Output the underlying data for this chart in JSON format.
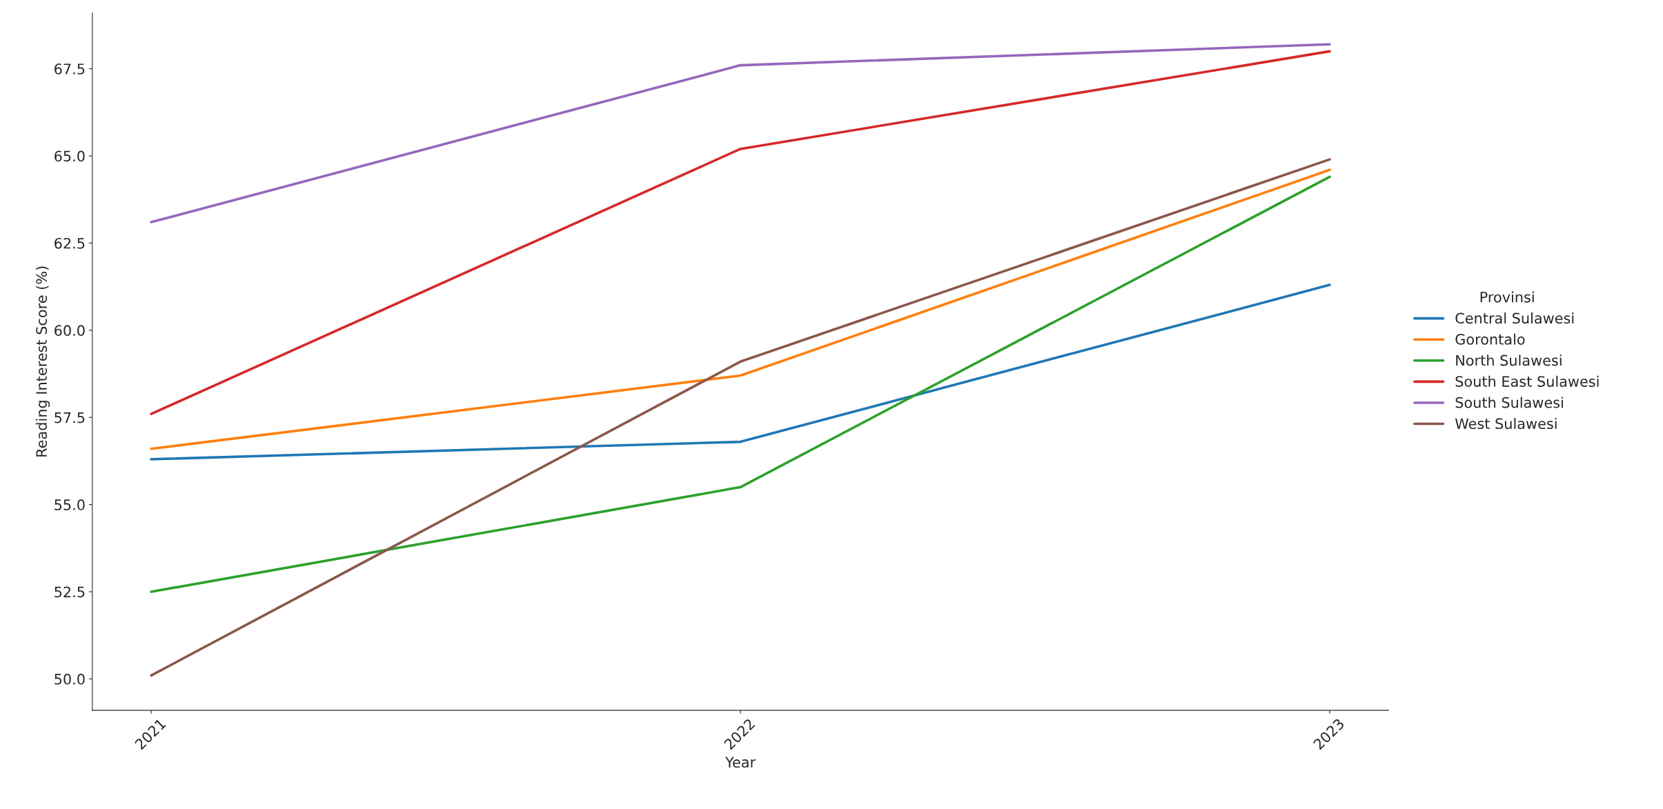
{
  "chart_data": {
    "type": "line",
    "xlabel": "Year",
    "ylabel": "Reading Interest Score (%)",
    "legend_title": "Provinsi",
    "x": [
      2021,
      2022,
      2023
    ],
    "series": [
      {
        "name": "Central Sulawesi",
        "color": "#1f77b4",
        "values": [
          56.3,
          56.8,
          61.3
        ]
      },
      {
        "name": "Gorontalo",
        "color": "#ff7f0e",
        "values": [
          56.6,
          58.7,
          64.6
        ]
      },
      {
        "name": "North Sulawesi",
        "color": "#2ca02c",
        "values": [
          52.5,
          55.5,
          64.4
        ]
      },
      {
        "name": "South East Sulawesi",
        "color": "#d62728",
        "values": [
          57.6,
          65.2,
          68.0
        ]
      },
      {
        "name": "South Sulawesi",
        "color": "#9467bd",
        "values": [
          63.1,
          67.6,
          68.2
        ]
      },
      {
        "name": "West Sulawesi",
        "color": "#8c564b",
        "values": [
          50.1,
          59.1,
          64.9
        ]
      }
    ],
    "xlim": [
      2020.9,
      2023.1
    ],
    "xticks": [
      2021,
      2022,
      2023
    ],
    "ylim": [
      49.1,
      69.1
    ],
    "yticks": [
      {
        "value": 50,
        "label": "50.0"
      },
      {
        "value": 52.5,
        "label": "52.5"
      },
      {
        "value": 55,
        "label": "55.0"
      },
      {
        "value": 57.5,
        "label": "57.5"
      },
      {
        "value": 60,
        "label": "60.0"
      },
      {
        "value": 62.5,
        "label": "62.5"
      },
      {
        "value": 65,
        "label": "65.0"
      },
      {
        "value": 67.5,
        "label": "67.5"
      }
    ],
    "legend": "right",
    "grid": false,
    "marker": "none",
    "line_style": "solid"
  }
}
